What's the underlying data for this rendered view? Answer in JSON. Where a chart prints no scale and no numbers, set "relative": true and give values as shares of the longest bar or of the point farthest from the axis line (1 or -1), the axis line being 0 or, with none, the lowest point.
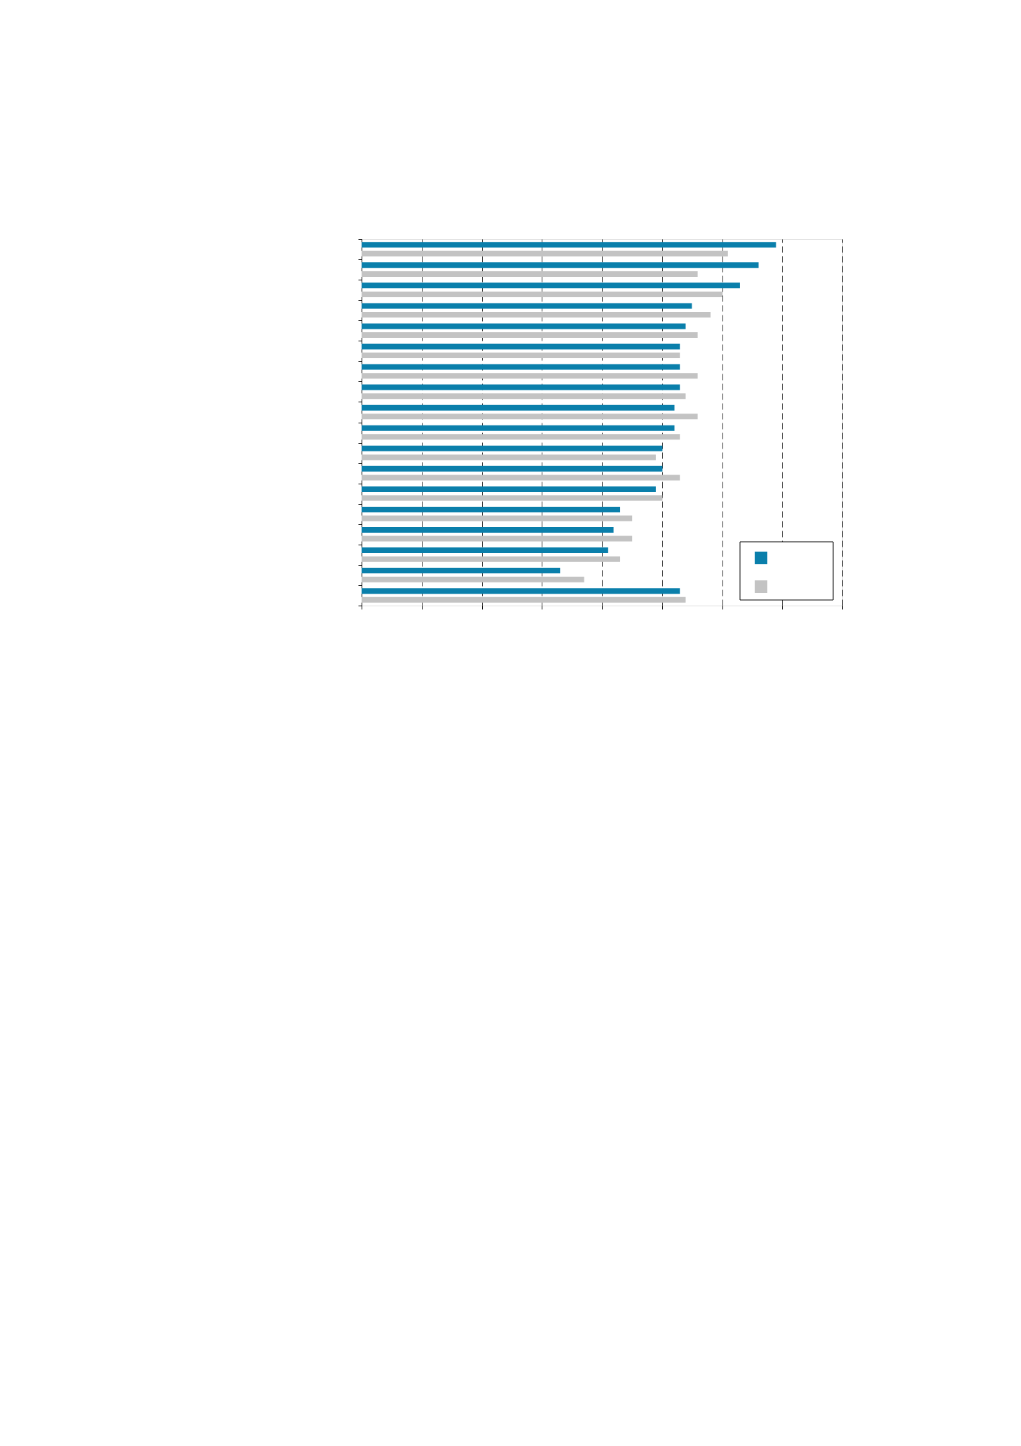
{
  "chart_data": {
    "type": "bar",
    "orientation": "horizontal",
    "relative": true,
    "grid": "x",
    "tick_labels": false,
    "categories": [
      null,
      null,
      null,
      null,
      null,
      null,
      null,
      null,
      null,
      null,
      null,
      null,
      null,
      null,
      null,
      null,
      null,
      null
    ],
    "series": [
      {
        "color": "#0a7fab",
        "values": [
          1,
          0.958,
          0.913,
          0.797,
          0.782,
          0.768,
          0.768,
          0.768,
          0.755,
          0.755,
          0.726,
          0.726,
          0.71,
          0.624,
          0.608,
          0.595,
          0.479,
          0.768
        ]
      },
      {
        "color": "#c3c3c3",
        "values": [
          0.884,
          0.811,
          0.871,
          0.842,
          0.811,
          0.768,
          0.811,
          0.782,
          0.811,
          0.768,
          0.71,
          0.768,
          0.726,
          0.653,
          0.653,
          0.624,
          0.537,
          0.782
        ]
      }
    ]
  }
}
